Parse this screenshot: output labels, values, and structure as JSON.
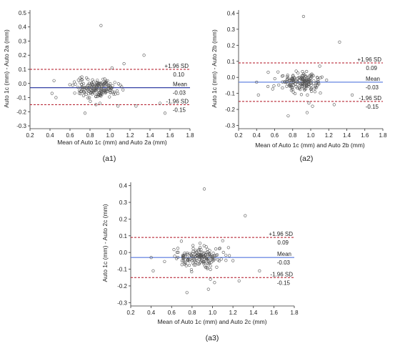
{
  "chart_data": [
    {
      "type": "scatter",
      "caption": "(a1)",
      "xlabel": "Mean of Auto 1c (mm) and Auto 2a (mm)",
      "ylabel": "Auto 1c (mm) - Auto 2a (mm)",
      "xlim": [
        0.2,
        1.8
      ],
      "ylim": [
        -0.32,
        0.52
      ],
      "xticks": [
        "0.2",
        "0.4",
        "0.6",
        "0.8",
        "1.0",
        "1.2",
        "1.4",
        "1.6",
        "1.8"
      ],
      "yticks": [
        "0.5",
        "0.4",
        "0.3",
        "0.2",
        "0.1",
        "0.0",
        "-0.1",
        "-0.2",
        "-0.3"
      ],
      "grid": false,
      "lines": {
        "upper": {
          "label": "+1.96 SD",
          "value_label": "0.10",
          "value": 0.1
        },
        "mean": {
          "label": "Mean",
          "value_label": "-0.03",
          "value": -0.03
        },
        "lower": {
          "label": "-1.96 SD",
          "value_label": "-0.15",
          "value": -0.15
        }
      },
      "line_colors": {
        "limits": "#b01020",
        "mean": "#1c2a9a"
      },
      "points": [
        [
          0.91,
          0.41
        ],
        [
          1.34,
          0.2
        ],
        [
          1.14,
          0.14
        ],
        [
          1.02,
          0.11
        ],
        [
          0.75,
          -0.21
        ],
        [
          1.55,
          -0.21
        ],
        [
          1.5,
          -0.14
        ],
        [
          1.26,
          -0.16
        ],
        [
          1.08,
          -0.16
        ],
        [
          0.86,
          -0.15
        ],
        [
          0.9,
          -0.14
        ],
        [
          0.42,
          -0.07
        ],
        [
          0.46,
          -0.1
        ],
        [
          0.44,
          0.02
        ]
      ]
    },
    {
      "type": "scatter",
      "caption": "(a2)",
      "xlabel": "Mean of Auto 1c (mm) and Auto 2b (mm)",
      "ylabel": "Auto 1c (mm) - Auto 2b (mm)",
      "xlim": [
        0.2,
        1.8
      ],
      "ylim": [
        -0.32,
        0.42
      ],
      "xticks": [
        "0.2",
        "0.4",
        "0.6",
        "0.8",
        "1.0",
        "1.2",
        "1.4",
        "1.6",
        "1.8"
      ],
      "yticks": [
        "0.4",
        "0.3",
        "0.2",
        "0.1",
        "0.0",
        "-0.1",
        "-0.2",
        "-0.3"
      ],
      "grid": false,
      "lines": {
        "upper": {
          "label": "+1.96 SD",
          "value_label": "0.09",
          "value": 0.09
        },
        "mean": {
          "label": "Mean",
          "value_label": "-0.03",
          "value": -0.03
        },
        "lower": {
          "label": "-1.96 SD",
          "value_label": "-0.15",
          "value": -0.15
        }
      },
      "line_colors": {
        "limits": "#b01020",
        "mean": "#5577dd"
      },
      "points": [
        [
          0.92,
          0.38
        ],
        [
          1.32,
          0.22
        ],
        [
          0.75,
          -0.24
        ],
        [
          0.96,
          -0.22
        ],
        [
          1.26,
          -0.17
        ],
        [
          1.46,
          -0.11
        ],
        [
          1.02,
          -0.18
        ],
        [
          0.42,
          -0.11
        ],
        [
          0.4,
          -0.03
        ],
        [
          1.1,
          0.07
        ],
        [
          0.98,
          -0.16
        ]
      ]
    },
    {
      "type": "scatter",
      "caption": "(a3)",
      "xlabel": "Mean of Auto 1c (mm) and Auto 2c (mm)",
      "ylabel": "Auto 1c (mm) - Auto 2c (mm)",
      "xlim": [
        0.2,
        1.8
      ],
      "ylim": [
        -0.32,
        0.42
      ],
      "xticks": [
        "0.2",
        "0.4",
        "0.6",
        "0.8",
        "1.0",
        "1.2",
        "1.4",
        "1.6",
        "1.8"
      ],
      "yticks": [
        "0.4",
        "0.3",
        "0.2",
        "0.1",
        "0.0",
        "-0.1",
        "-0.2",
        "-0.3"
      ],
      "grid": false,
      "lines": {
        "upper": {
          "label": "+1.96 SD",
          "value_label": "0.09",
          "value": 0.09
        },
        "mean": {
          "label": "Mean",
          "value_label": "-0.03",
          "value": -0.03
        },
        "lower": {
          "label": "-1.96 SD",
          "value_label": "-0.15",
          "value": -0.15
        }
      },
      "line_colors": {
        "limits": "#b01020",
        "mean": "#5577dd"
      },
      "points": [
        [
          0.92,
          0.38
        ],
        [
          1.32,
          0.22
        ],
        [
          0.75,
          -0.24
        ],
        [
          0.96,
          -0.22
        ],
        [
          1.26,
          -0.17
        ],
        [
          1.46,
          -0.11
        ],
        [
          1.02,
          -0.18
        ],
        [
          0.42,
          -0.11
        ],
        [
          0.4,
          -0.03
        ],
        [
          1.1,
          0.07
        ],
        [
          0.98,
          -0.16
        ]
      ]
    }
  ]
}
